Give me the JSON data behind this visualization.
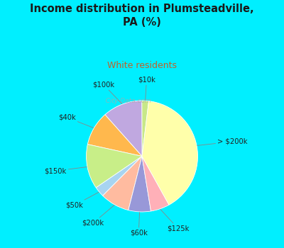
{
  "title": "Income distribution in Plumsteadville,\nPA (%)",
  "subtitle": "White residents",
  "title_color": "#1a1a1a",
  "subtitle_color": "#c0622a",
  "background_outer": "#00efff",
  "background_inner_color": "#dff5e8",
  "labels": [
    "$10k",
    "$100k",
    "$40k",
    "$150k",
    "$50k",
    "$200k",
    "$60k",
    "$125k",
    "> $200k"
  ],
  "sizes": [
    2.0,
    11.5,
    10.0,
    13.0,
    3.0,
    8.5,
    6.5,
    5.5,
    40.0
  ],
  "colors": [
    "#c8e888",
    "#c0a8e0",
    "#ffb84d",
    "#c8ee88",
    "#a8d4f0",
    "#ffbba0",
    "#9898d8",
    "#ffb0b8",
    "#ffffaa"
  ],
  "startangle": 83,
  "label_fontsize": 7.2,
  "label_color": "#222222",
  "watermark": "  City-Data.com"
}
